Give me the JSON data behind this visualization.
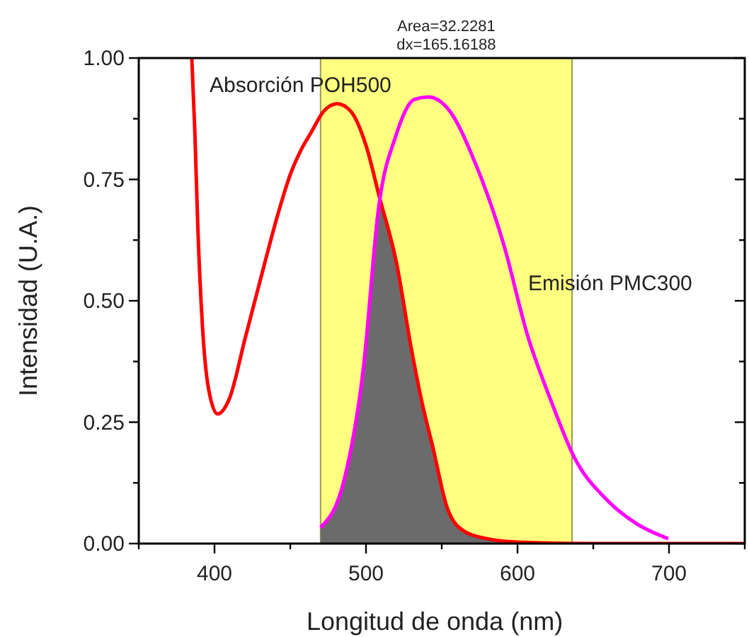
{
  "chart_data": {
    "type": "line",
    "xlabel": "Longitud de onda (nm)",
    "ylabel": "Intensidad (U.A.)",
    "annotations": [
      "Area=32.2281",
      "dx=165.16188"
    ],
    "xlim": [
      350,
      750
    ],
    "ylim": [
      0,
      1
    ],
    "xticks": [
      {
        "value": 350,
        "label": null
      },
      400,
      {
        "value": 450,
        "label": null
      },
      500,
      {
        "value": 550,
        "label": null
      },
      600,
      {
        "value": 650,
        "label": null
      },
      700,
      {
        "value": 750,
        "label": null
      }
    ],
    "yticks": [
      {
        "value": 0,
        "label": "0.00"
      },
      {
        "value": 0.125,
        "label": null
      },
      {
        "value": 0.25,
        "label": "0.25"
      },
      {
        "value": 0.375,
        "label": null
      },
      {
        "value": 0.5,
        "label": "0.50"
      },
      {
        "value": 0.625,
        "label": null
      },
      {
        "value": 0.75,
        "label": "0.75"
      },
      {
        "value": 0.875,
        "label": null
      },
      {
        "value": 1,
        "label": "1.00"
      }
    ],
    "grid": false,
    "marker": "none",
    "line_style": "solid",
    "bands": [
      {
        "axis": "x",
        "from": 470,
        "to": 636,
        "color": "#ffff80"
      }
    ],
    "series": [
      {
        "type": "area",
        "color": "#6b6b6b",
        "x": [
          470,
          485.5,
          498,
          508.7,
          520,
          530,
          537,
          544,
          554,
          565,
          580,
          600,
          636
        ],
        "values": [
          0.033,
          0.13,
          0.354,
          0.7,
          0.58,
          0.4,
          0.29,
          0.2,
          0.07,
          0.025,
          0.01,
          0.003,
          0
        ]
      },
      {
        "name": "Absorción POH500",
        "color": "#ff0000",
        "x": [
          385,
          387,
          389,
          392,
          396,
          402,
          410,
          420,
          433,
          442,
          450,
          457,
          464,
          472,
          481,
          490,
          500,
          509,
          520,
          530,
          537,
          544,
          554,
          565,
          580,
          600,
          650,
          700,
          750
        ],
        "values": [
          1,
          0.85,
          0.65,
          0.45,
          0.32,
          0.267,
          0.3,
          0.42,
          0.576,
          0.68,
          0.76,
          0.81,
          0.848,
          0.89,
          0.906,
          0.89,
          0.82,
          0.712,
          0.58,
          0.4,
          0.29,
          0.2,
          0.07,
          0.025,
          0.01,
          0.003,
          0,
          0,
          0
        ]
      },
      {
        "name": "Emisión PMC300",
        "color": "#ff00ff",
        "x": [
          470,
          485.5,
          498,
          508.7,
          519.5,
          532,
          541.3,
          554,
          572.6,
          591,
          606.5,
          622,
          637.4,
          659,
          678,
          699.5
        ],
        "values": [
          0.033,
          0.13,
          0.354,
          0.7,
          0.838,
          0.915,
          0.92,
          0.896,
          0.78,
          0.615,
          0.43,
          0.295,
          0.178,
          0.09,
          0.042,
          0.01
        ]
      }
    ]
  }
}
